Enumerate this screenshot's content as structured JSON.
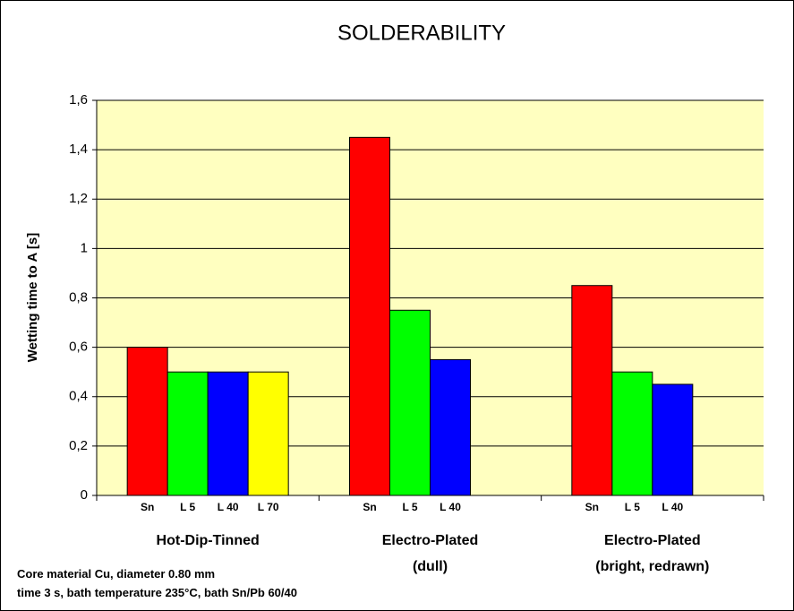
{
  "chart_data": {
    "type": "bar",
    "title": "SOLDERABILITY",
    "y_label": "Wetting time to A [s]",
    "categories": [
      "Hot-Dip-Tinned",
      "Electro-Plated\n(dull)",
      "Electro-Plated\n(bright, redrawn)"
    ],
    "series": [
      {
        "name": "Sn",
        "color": "#ff0000",
        "values": [
          0.6,
          1.45,
          0.85
        ]
      },
      {
        "name": "L 5",
        "color": "#00ff00",
        "values": [
          0.5,
          0.75,
          0.5
        ]
      },
      {
        "name": "L 40",
        "color": "#0000ff",
        "values": [
          0.5,
          0.55,
          0.45
        ]
      },
      {
        "name": "L 70",
        "color": "#ffff00",
        "values": [
          0.5,
          null,
          null
        ]
      }
    ],
    "ylim": [
      0,
      1.6
    ],
    "yticks": [
      0,
      {
        "value": 0.2,
        "label": "0,2"
      },
      {
        "value": 0.4,
        "label": "0,4"
      },
      {
        "value": 0.6,
        "label": "0,6"
      },
      {
        "value": 0.8,
        "label": "0,8"
      },
      1,
      {
        "value": 1.2,
        "label": "1,2"
      },
      {
        "value": 1.4,
        "label": "1,4"
      },
      {
        "value": 1.6,
        "label": "1,6"
      }
    ],
    "grid": true,
    "plot_background": "#ffffc0",
    "notes": [
      "Core material Cu, diameter 0.80 mm",
      "time 3 s, bath temperature 235°C, bath Sn/Pb 60/40"
    ]
  }
}
